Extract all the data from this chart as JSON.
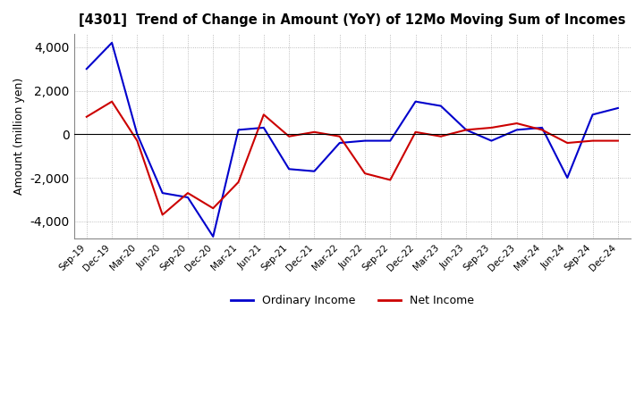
{
  "title": "[4301]  Trend of Change in Amount (YoY) of 12Mo Moving Sum of Incomes",
  "ylabel": "Amount (million yen)",
  "ylim": [
    -4800,
    4600
  ],
  "yticks": [
    -4000,
    -2000,
    0,
    2000,
    4000
  ],
  "x_labels": [
    "Sep-19",
    "Dec-19",
    "Mar-20",
    "Jun-20",
    "Sep-20",
    "Dec-20",
    "Mar-21",
    "Jun-21",
    "Sep-21",
    "Dec-21",
    "Mar-22",
    "Jun-22",
    "Sep-22",
    "Dec-22",
    "Mar-23",
    "Jun-23",
    "Sep-23",
    "Dec-23",
    "Mar-24",
    "Jun-24",
    "Sep-24",
    "Dec-24"
  ],
  "ordinary_income": [
    3000,
    4200,
    0,
    -2700,
    -2900,
    -4700,
    200,
    300,
    -1600,
    -1700,
    -400,
    -300,
    -300,
    1500,
    1300,
    200,
    -300,
    200,
    300,
    -2000,
    900,
    1200
  ],
  "net_income": [
    800,
    1500,
    -300,
    -3700,
    -2700,
    -3400,
    -2200,
    900,
    -100,
    100,
    -100,
    -1800,
    -2100,
    100,
    -100,
    200,
    300,
    500,
    200,
    -400,
    -300,
    -300
  ],
  "ordinary_color": "#0000cc",
  "net_color": "#cc0000",
  "grid_color": "#aaaaaa",
  "background_color": "#ffffff",
  "legend_labels": [
    "Ordinary Income",
    "Net Income"
  ]
}
